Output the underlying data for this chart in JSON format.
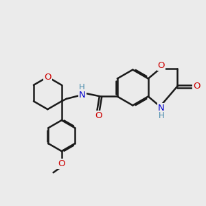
{
  "bg_color": "#ebebeb",
  "bond_color": "#1a1a1a",
  "bond_width": 1.8,
  "atom_colors": {
    "O": "#cc0000",
    "N": "#0000cc",
    "H": "#4488aa",
    "C": "#1a1a1a"
  },
  "font_size": 9.5,
  "fig_size": [
    3.0,
    3.0
  ],
  "dpi": 100
}
